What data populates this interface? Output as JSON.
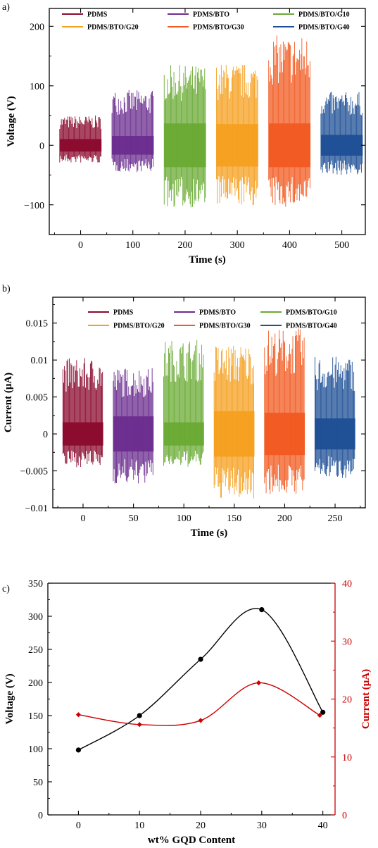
{
  "chart_data": [
    {
      "type": "line",
      "panel_label": "a)",
      "xlabel": "Time (s)",
      "ylabel": "Voltage (V)",
      "xlim": [
        -60,
        545
      ],
      "ylim": [
        -150,
        230
      ],
      "xticks": [
        0,
        100,
        200,
        300,
        400,
        500
      ],
      "yticks": [
        -100,
        0,
        100,
        200
      ],
      "legend_position": "top",
      "grid": false,
      "series": [
        {
          "name": "PDMS",
          "color": "#8b0a2e",
          "x_range": [
            -40,
            40
          ],
          "upper_envelope": 50,
          "lower_envelope": -30
        },
        {
          "name": "PDMS/BTO",
          "color": "#6b2d8f",
          "x_range": [
            60,
            140
          ],
          "upper_envelope": 93,
          "lower_envelope": -45
        },
        {
          "name": "PDMS/BTO/G10",
          "color": "#6aaa34",
          "x_range": [
            160,
            240
          ],
          "upper_envelope": 135,
          "lower_envelope": -105
        },
        {
          "name": "PDMS/BTO/G20",
          "color": "#f5a020",
          "x_range": [
            260,
            340
          ],
          "upper_envelope": 138,
          "lower_envelope": -102
        },
        {
          "name": "PDMS/BTO/G30",
          "color": "#f25a21",
          "x_range": [
            360,
            440
          ],
          "upper_envelope": 185,
          "lower_envelope": -105
        },
        {
          "name": "PDMS/BTO/G40",
          "color": "#1e4f96",
          "x_range": [
            460,
            540
          ],
          "upper_envelope": 90,
          "lower_envelope": -50
        }
      ]
    },
    {
      "type": "line",
      "panel_label": "b)",
      "xlabel": "Time (s)",
      "ylabel": "Current (μA)",
      "xlim": [
        -30,
        280
      ],
      "ylim": [
        -0.01,
        0.0185
      ],
      "xticks": [
        0,
        50,
        100,
        150,
        200,
        250
      ],
      "yticks": [
        -0.01,
        -0.005,
        0,
        0.005,
        0.01,
        0.015
      ],
      "ytick_labels": [
        "−0.01",
        "−0.005",
        "0",
        "0.005",
        "0.01",
        "0.015"
      ],
      "legend_position": "top",
      "grid": false,
      "series": [
        {
          "name": "PDMS",
          "color": "#8b0a2e",
          "x_range": [
            -20,
            20
          ],
          "upper_envelope": 0.0103,
          "lower_envelope": -0.0045
        },
        {
          "name": "PDMS/BTO",
          "color": "#6b2d8f",
          "x_range": [
            30,
            70
          ],
          "upper_envelope": 0.009,
          "lower_envelope": -0.0068
        },
        {
          "name": "PDMS/BTO/G10",
          "color": "#6aaa34",
          "x_range": [
            80,
            120
          ],
          "upper_envelope": 0.0128,
          "lower_envelope": -0.0045
        },
        {
          "name": "PDMS/BTO/G20",
          "color": "#f5a020",
          "x_range": [
            130,
            170
          ],
          "upper_envelope": 0.0122,
          "lower_envelope": -0.0088
        },
        {
          "name": "PDMS/BTO/G30",
          "color": "#f25a21",
          "x_range": [
            180,
            220
          ],
          "upper_envelope": 0.0143,
          "lower_envelope": -0.0082
        },
        {
          "name": "PDMS/BTO/G40",
          "color": "#1e4f96",
          "x_range": [
            230,
            270
          ],
          "upper_envelope": 0.0105,
          "lower_envelope": -0.006
        }
      ]
    },
    {
      "type": "line",
      "panel_label": "c)",
      "xlabel": "wt% GQD Content",
      "ylabel": "Voltage (V)",
      "ylabel_right": "Current (μA)",
      "xlim": [
        -5,
        42
      ],
      "ylim": [
        0,
        350
      ],
      "ylim_right": [
        0,
        40
      ],
      "xticks": [
        0,
        10,
        20,
        30,
        40
      ],
      "yticks": [
        0,
        50,
        100,
        150,
        200,
        250,
        300,
        350
      ],
      "yticks_right": [
        0,
        10,
        20,
        30,
        40
      ],
      "right_axis_color": "#cc0000",
      "grid": false,
      "series": [
        {
          "name": "Voltage",
          "axis": "left",
          "color": "#000000",
          "marker": "circle",
          "x": [
            0,
            10,
            20,
            30,
            40
          ],
          "y": [
            98,
            150,
            235,
            310,
            155
          ]
        },
        {
          "name": "Current",
          "axis": "right",
          "color": "#cc0000",
          "marker": "diamond",
          "x": [
            0,
            10,
            20,
            29.5,
            39.5
          ],
          "y": [
            17.3,
            15.6,
            16.3,
            22.8,
            17.2
          ]
        }
      ]
    }
  ]
}
